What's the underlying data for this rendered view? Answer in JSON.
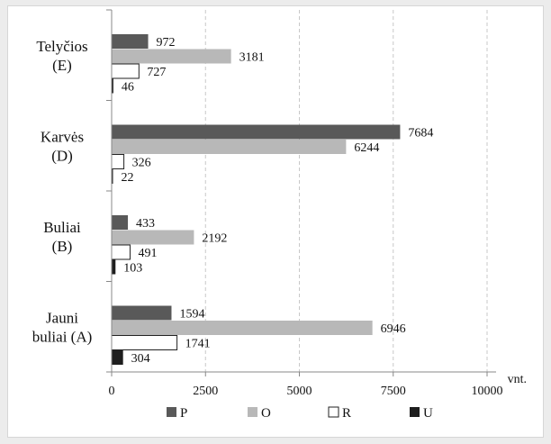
{
  "chart_data": {
    "type": "bar",
    "orientation": "horizontal",
    "categories": [
      [
        "Telyčios",
        "(E)"
      ],
      [
        "Karvės",
        "(D)"
      ],
      [
        "Buliai",
        "(B)"
      ],
      [
        "Jauni",
        "buliai (A)"
      ]
    ],
    "series": [
      {
        "name": "P",
        "color": "#595959",
        "values": [
          972,
          7684,
          433,
          1594
        ]
      },
      {
        "name": "O",
        "color": "#b8b8b8",
        "values": [
          3181,
          6244,
          2192,
          6946
        ]
      },
      {
        "name": "R",
        "color": "#ffffff",
        "values": [
          727,
          326,
          491,
          1741
        ]
      },
      {
        "name": "U",
        "color": "#1e1e1e",
        "values": [
          46,
          22,
          103,
          304
        ]
      }
    ],
    "xlim": [
      0,
      10000
    ],
    "xticks": [
      "0",
      "2500",
      "5000",
      "7500",
      "10000"
    ],
    "xlabel": "vnt.",
    "grid": "vertical dashed",
    "legend_placement": "bottom"
  }
}
